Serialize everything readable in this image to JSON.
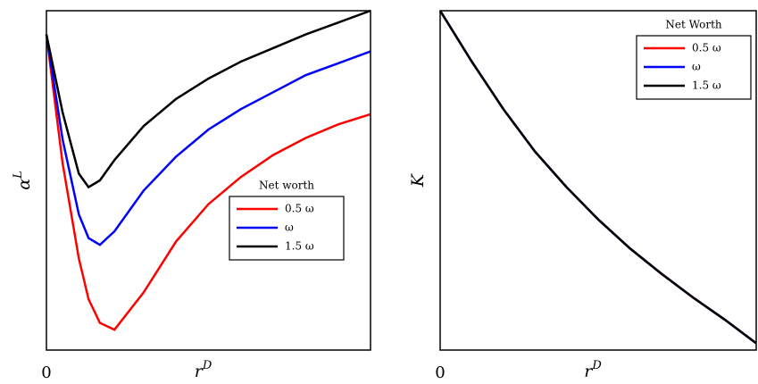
{
  "chart_data": [
    {
      "type": "line",
      "xlabel": "r",
      "xlabel_superscript": "D",
      "ylabel": "α",
      "ylabel_superscript": "L",
      "xlim": [
        0,
        1
      ],
      "ylim": [
        0,
        1
      ],
      "xticks": [
        0
      ],
      "x": [
        0,
        0.05,
        0.1,
        0.13,
        0.165,
        0.21,
        0.3,
        0.4,
        0.5,
        0.6,
        0.7,
        0.8,
        0.9,
        1.0
      ],
      "legend_title": "Net worth",
      "legend": "center right",
      "series": [
        {
          "name": "0.5 ω",
          "color": "#ff0000",
          "values": [
            0.93,
            0.55,
            0.27,
            0.15,
            0.08,
            0.06,
            0.17,
            0.32,
            0.43,
            0.51,
            0.575,
            0.625,
            0.665,
            0.695
          ]
        },
        {
          "name": "ω",
          "color": "#0000ff",
          "values": [
            0.93,
            0.62,
            0.4,
            0.33,
            0.31,
            0.35,
            0.47,
            0.57,
            0.65,
            0.71,
            0.76,
            0.81,
            0.845,
            0.88
          ]
        },
        {
          "name": "1.5 ω",
          "color": "#000000",
          "values": [
            0.93,
            0.7,
            0.52,
            0.48,
            0.5,
            0.56,
            0.66,
            0.74,
            0.8,
            0.85,
            0.89,
            0.93,
            0.965,
            1.0
          ]
        }
      ]
    },
    {
      "type": "line",
      "xlabel": "r",
      "xlabel_superscript": "D",
      "ylabel": "K",
      "xlim": [
        0,
        1
      ],
      "ylim": [
        0,
        1
      ],
      "xticks": [
        0
      ],
      "x": [
        0,
        0.1,
        0.2,
        0.3,
        0.4,
        0.5,
        0.6,
        0.7,
        0.8,
        0.9,
        1.0
      ],
      "legend_title": "Net Worth",
      "legend": "upper right",
      "series": [
        {
          "name": "0.5 ω",
          "color": "#ff0000",
          "values": [
            1.0,
            0.85,
            0.71,
            0.585,
            0.48,
            0.385,
            0.3,
            0.225,
            0.155,
            0.09,
            0.02
          ]
        },
        {
          "name": "ω",
          "color": "#0000ff",
          "values": [
            1.0,
            0.85,
            0.71,
            0.585,
            0.48,
            0.385,
            0.3,
            0.225,
            0.155,
            0.09,
            0.02
          ]
        },
        {
          "name": "1.5 ω",
          "color": "#000000",
          "values": [
            1.0,
            0.85,
            0.71,
            0.585,
            0.48,
            0.385,
            0.3,
            0.225,
            0.155,
            0.09,
            0.02
          ]
        }
      ]
    }
  ]
}
